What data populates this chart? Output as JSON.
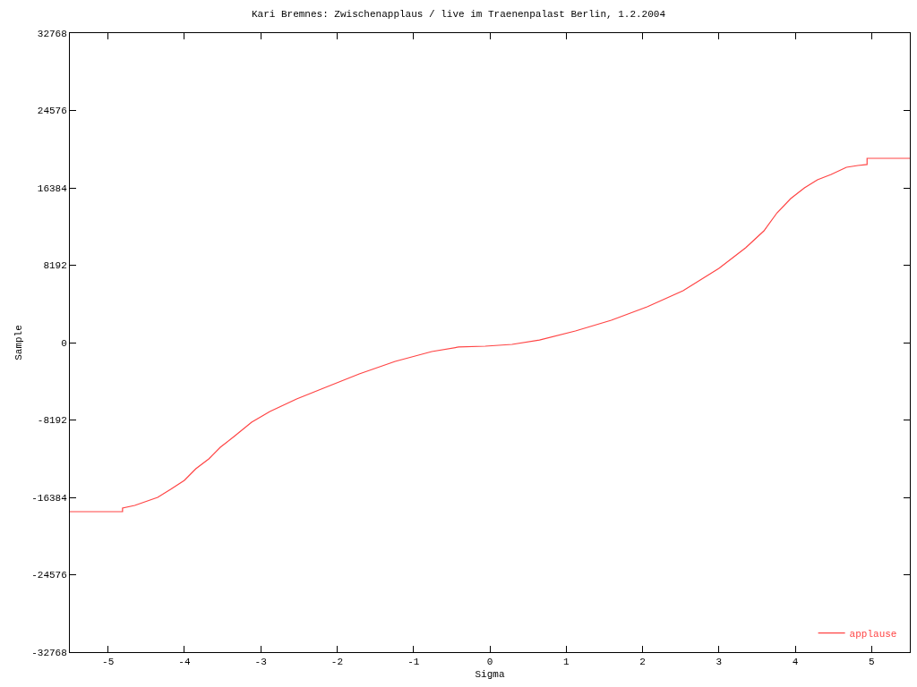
{
  "chart_data": {
    "type": "line",
    "title": "Kari Bremnes: Zwischenapplaus / live im Traenenpalast Berlin, 1.2.2004",
    "xlabel": "Sigma",
    "ylabel": "Sample",
    "xlim": [
      -5.5,
      5.5
    ],
    "xticks": [
      -5,
      -4,
      -3,
      -2,
      -1,
      0,
      1,
      2,
      3,
      4,
      5
    ],
    "ylim": [
      -32768,
      32768
    ],
    "yticks": [
      -32768,
      -24576,
      -16384,
      -8192,
      0,
      8192,
      16384,
      24576,
      32768
    ],
    "grid": false,
    "legend": "bottom right",
    "marker": "none",
    "line_style": "solid",
    "series": [
      {
        "name": "applause",
        "color": "#ff4444",
        "x": [
          -5.5,
          -4.81,
          -4.81,
          -4.65,
          -4.35,
          -4.18,
          -4.0,
          -3.85,
          -3.68,
          -3.53,
          -3.35,
          -3.12,
          -2.88,
          -2.53,
          -2.18,
          -1.71,
          -1.24,
          -0.76,
          -0.41,
          -0.06,
          0.29,
          0.65,
          1.12,
          1.59,
          2.06,
          2.53,
          3.0,
          3.35,
          3.59,
          3.76,
          3.94,
          4.12,
          4.29,
          4.47,
          4.67,
          4.82,
          4.94,
          4.94,
          5.5
        ],
        "values": [
          -17900,
          -17900,
          -17520,
          -17240,
          -16380,
          -15530,
          -14580,
          -13350,
          -12310,
          -11080,
          -9940,
          -8430,
          -7290,
          -5970,
          -4830,
          -3310,
          -1990,
          -950,
          -470,
          -380,
          -190,
          280,
          1230,
          2370,
          3790,
          5490,
          7860,
          10040,
          11840,
          13730,
          15250,
          16380,
          17240,
          17800,
          18560,
          18750,
          18850,
          19510,
          19510
        ]
      }
    ]
  }
}
